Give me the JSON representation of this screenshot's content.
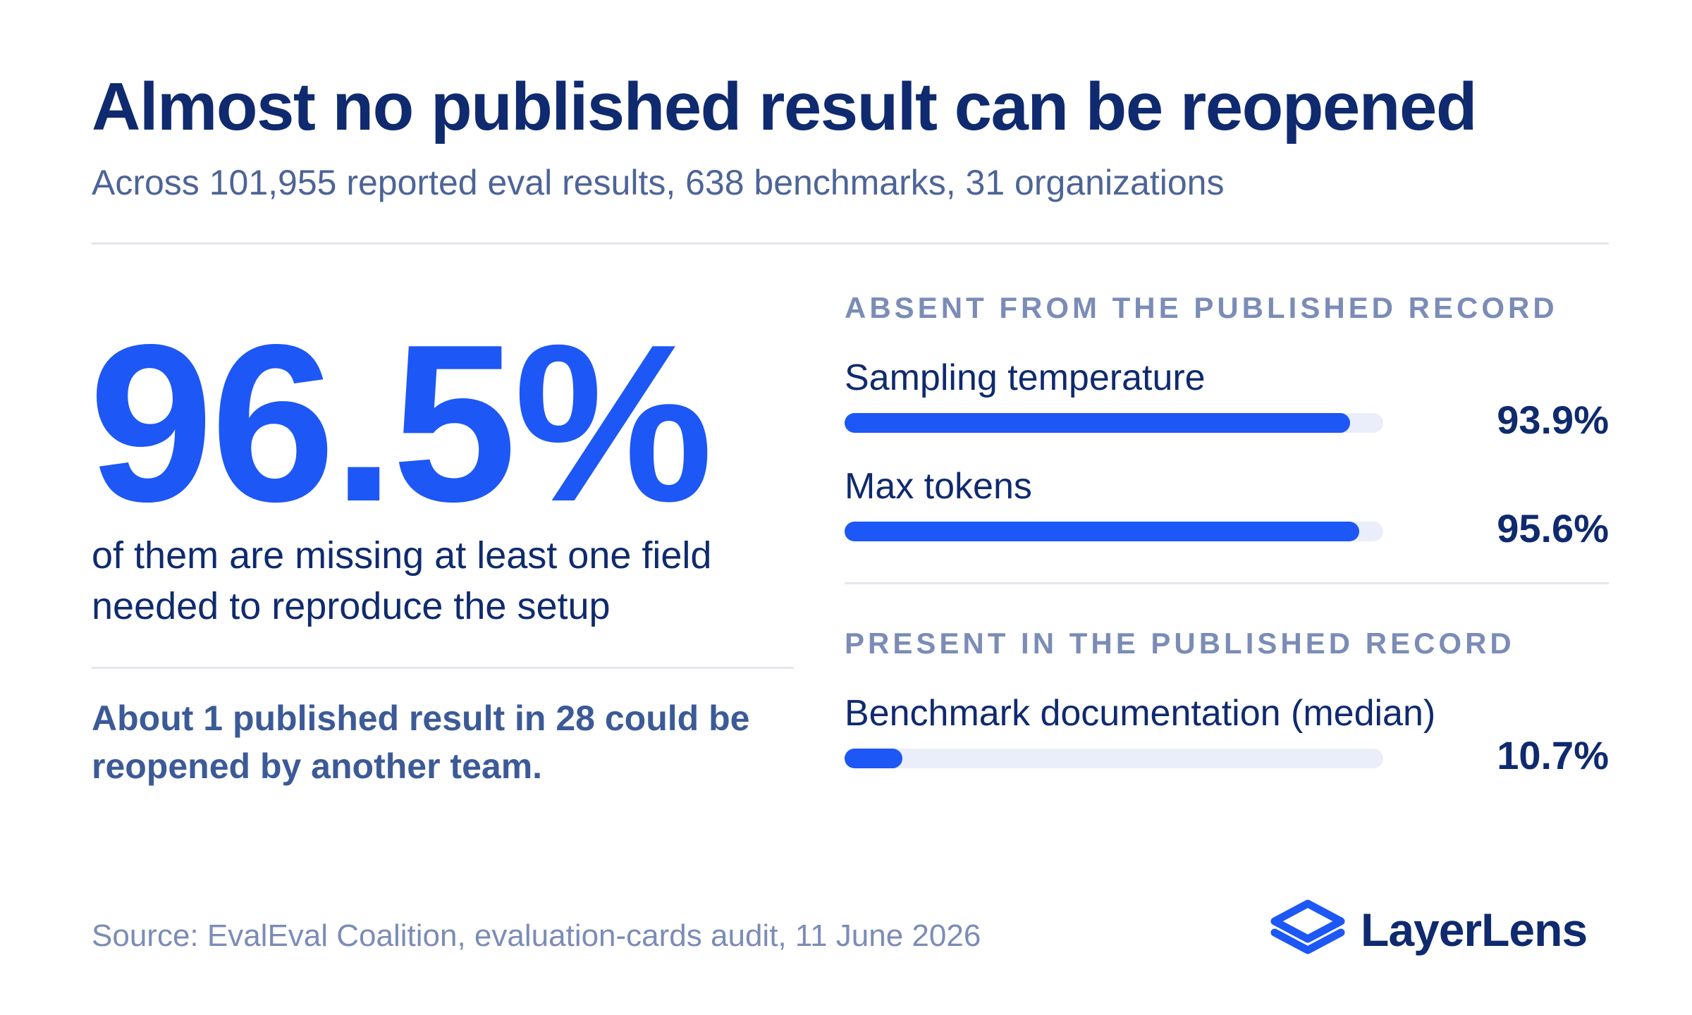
{
  "header": {
    "title": "Almost no published result can be reopened",
    "subtitle": "Across 101,955 reported eval results, 638 benchmarks, 31 organizations"
  },
  "headline": {
    "value": "96.5%",
    "description": "of them are missing at least one field needed to reproduce the setup",
    "note": "About 1 published result in 28 could be reopened by another team."
  },
  "chart_data": {
    "type": "bar",
    "orientation": "horizontal",
    "xlim": [
      0,
      100
    ],
    "groups": [
      {
        "heading": "ABSENT FROM THE PUBLISHED RECORD",
        "categories": [
          "Sampling temperature",
          "Max tokens"
        ],
        "values": [
          93.9,
          95.6
        ],
        "labels": [
          "93.9%",
          "95.6%"
        ]
      },
      {
        "heading": "PRESENT IN THE PUBLISHED RECORD",
        "categories": [
          "Benchmark documentation (median)"
        ],
        "values": [
          10.7
        ],
        "labels": [
          "10.7%"
        ]
      }
    ],
    "colors": {
      "fill": "#1d57f5",
      "track": "#eaeefb"
    }
  },
  "footer": {
    "source": "Source: EvalEval Coalition, evaluation-cards audit, 11 June 2026",
    "brand": "LayerLens",
    "logo_icon": "layers-icon"
  }
}
